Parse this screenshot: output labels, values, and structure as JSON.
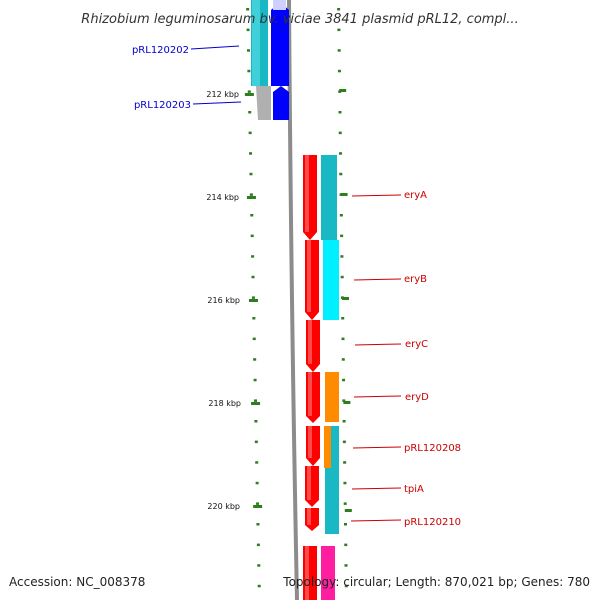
{
  "title": "Rhizobium leguminosarum bv. viciae 3841 plasmid pRL12, compl...",
  "footer": {
    "accession": "Accession: NC_008378",
    "summary": "Topology: circular; Length: 870,021 bp; Genes: 780"
  },
  "scale_labels": [
    "212 kbp",
    "214 kbp",
    "216 kbp",
    "218 kbp",
    "220 kbp"
  ],
  "left_labels": [
    {
      "text": "pRL120202",
      "color": "#0000cc"
    },
    {
      "text": "pRL120203",
      "color": "#0000cc"
    }
  ],
  "right_labels": [
    {
      "text": "eryA",
      "color": "#cc0000"
    },
    {
      "text": "eryB",
      "color": "#cc0000"
    },
    {
      "text": "eryC",
      "color": "#cc0000"
    },
    {
      "text": "eryD",
      "color": "#cc0000"
    },
    {
      "text": "pRL120208",
      "color": "#cc0000"
    },
    {
      "text": "tpiA",
      "color": "#cc0000"
    },
    {
      "text": "pRL120210",
      "color": "#cc0000"
    }
  ],
  "colors": {
    "backbone": "#8c8c8c",
    "tick": "#2e7d1e",
    "cds_forward": "#ff0000",
    "cds_reverse": "#0000ff",
    "cog_teal": "#1ab8c4",
    "cog_cyan": "#00f0ff",
    "cog_orange": "#ff8c00",
    "cog_gray": "#b0b0b0",
    "cog_magenta": "#ff1ea0",
    "cog_light": "#d8f0f4",
    "label_line_blue": "#0000cc",
    "label_line_red": "#cc0000"
  }
}
